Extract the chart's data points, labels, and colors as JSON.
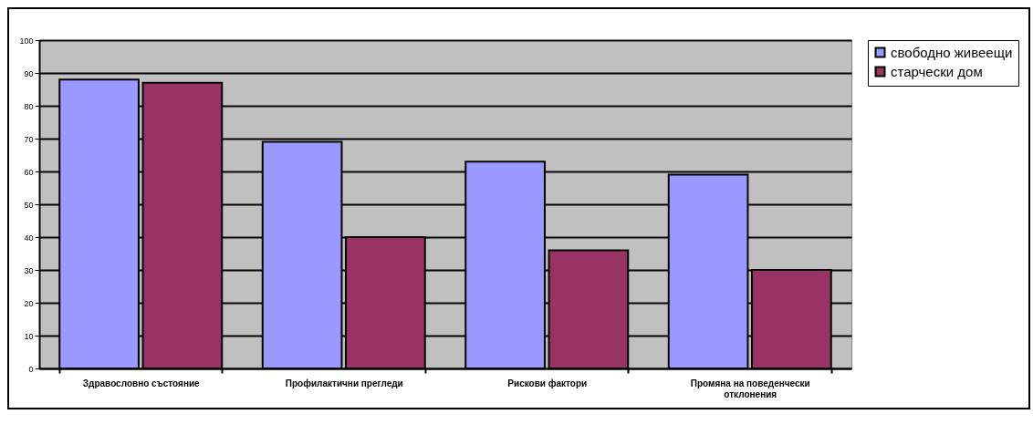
{
  "chart_data": {
    "type": "bar",
    "categories": [
      "Здравословно състояние",
      "Профилактични прегледи",
      "Рискови фактори",
      "Промяна на поведенчески отклонения"
    ],
    "series": [
      {
        "name": "свободно живеещи",
        "color": "#9999ff",
        "values": [
          88,
          69,
          63,
          59
        ]
      },
      {
        "name": "старчески дом",
        "color": "#993366",
        "values": [
          87,
          40,
          36,
          30
        ]
      }
    ],
    "ylim": [
      0,
      100
    ],
    "yticks": [
      0,
      10,
      20,
      30,
      40,
      50,
      60,
      70,
      80,
      90,
      100
    ],
    "grid": "y",
    "legend": "right"
  }
}
